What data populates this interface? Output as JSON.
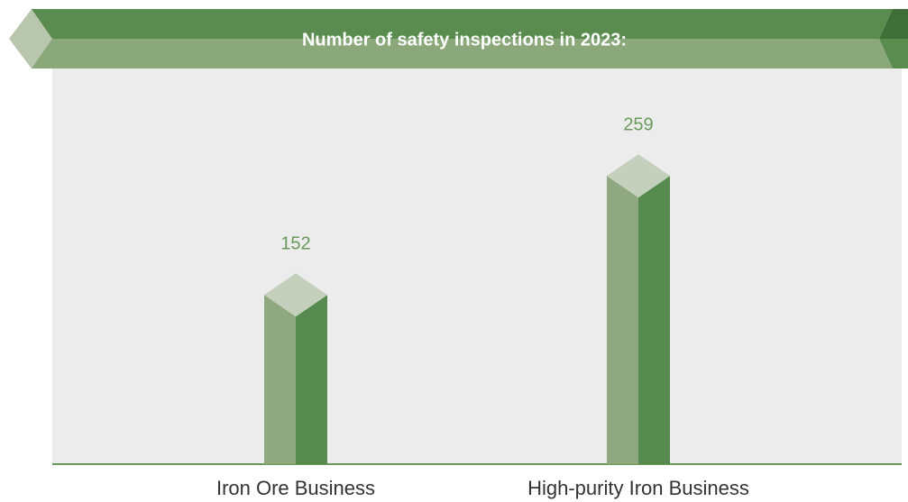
{
  "chart_data": {
    "type": "bar",
    "title": "Number of safety inspections in 2023:",
    "categories": [
      "Iron Ore Business",
      "High-purity Iron Business"
    ],
    "values": [
      152,
      259
    ],
    "color": "#568a4f"
  }
}
